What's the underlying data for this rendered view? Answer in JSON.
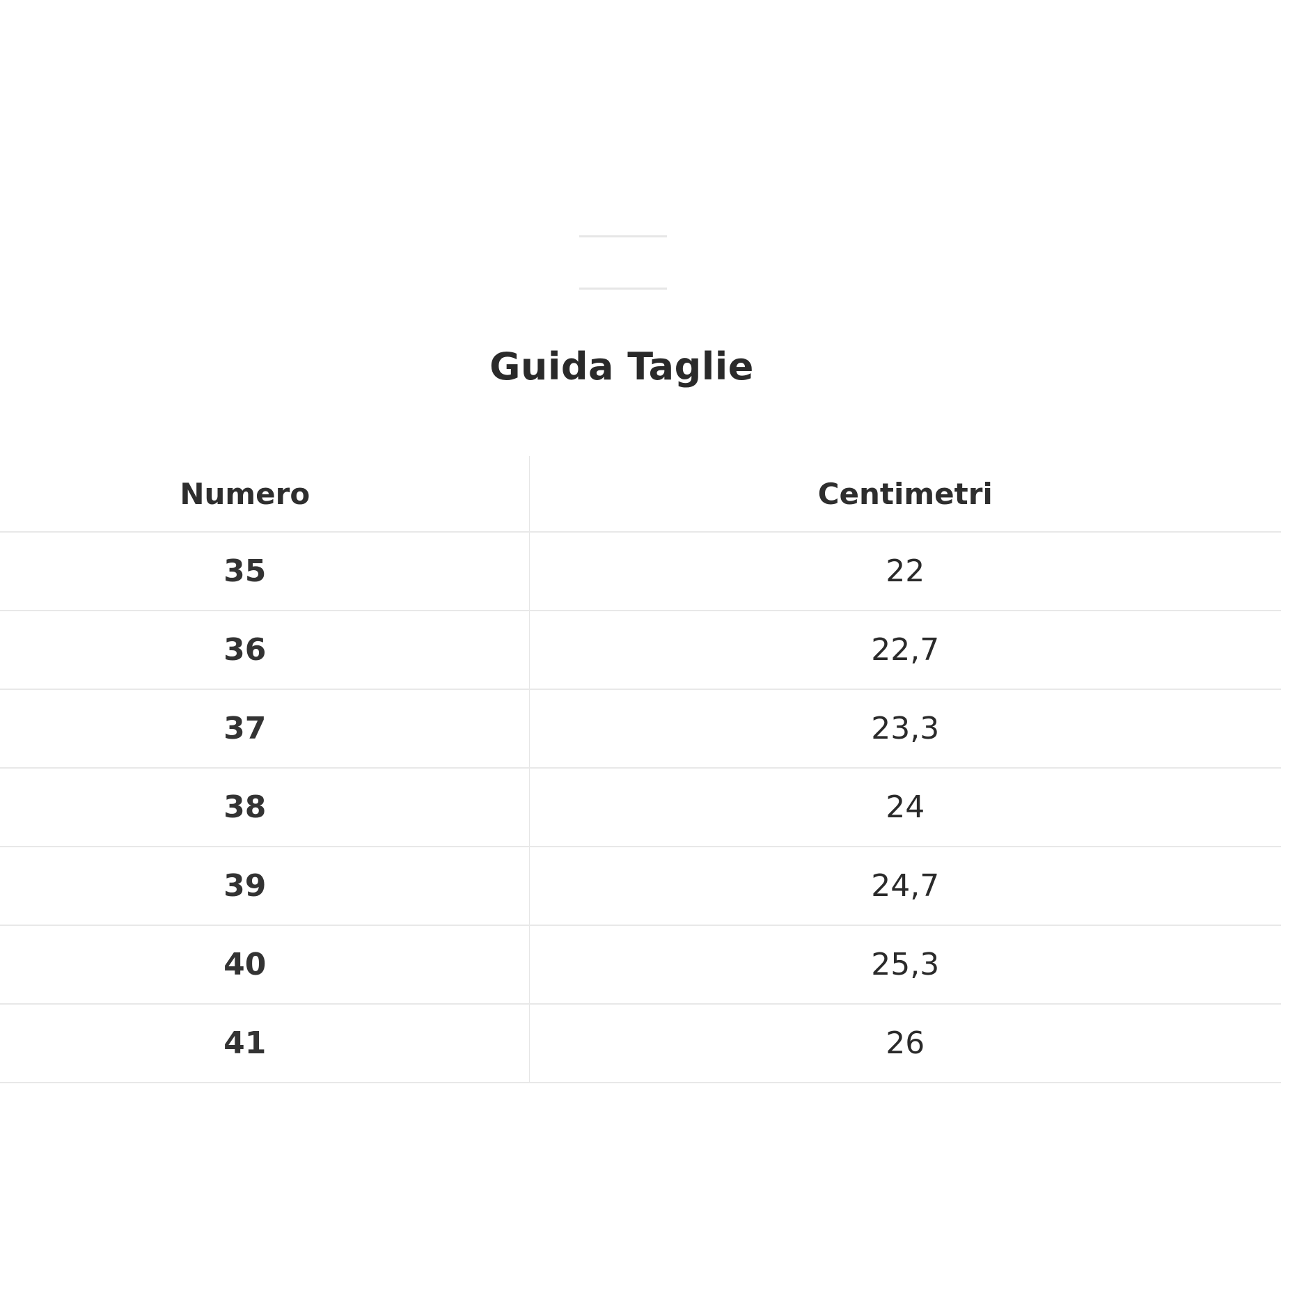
{
  "title": "Guida Taglie",
  "table": {
    "headers": [
      "Numero",
      "Centimetri"
    ],
    "rows": [
      [
        "35",
        "22"
      ],
      [
        "36",
        "22,7"
      ],
      [
        "37",
        "23,3"
      ],
      [
        "38",
        "24"
      ],
      [
        "39",
        "24,7"
      ],
      [
        "40",
        "25,3"
      ],
      [
        "41",
        "26"
      ]
    ]
  }
}
